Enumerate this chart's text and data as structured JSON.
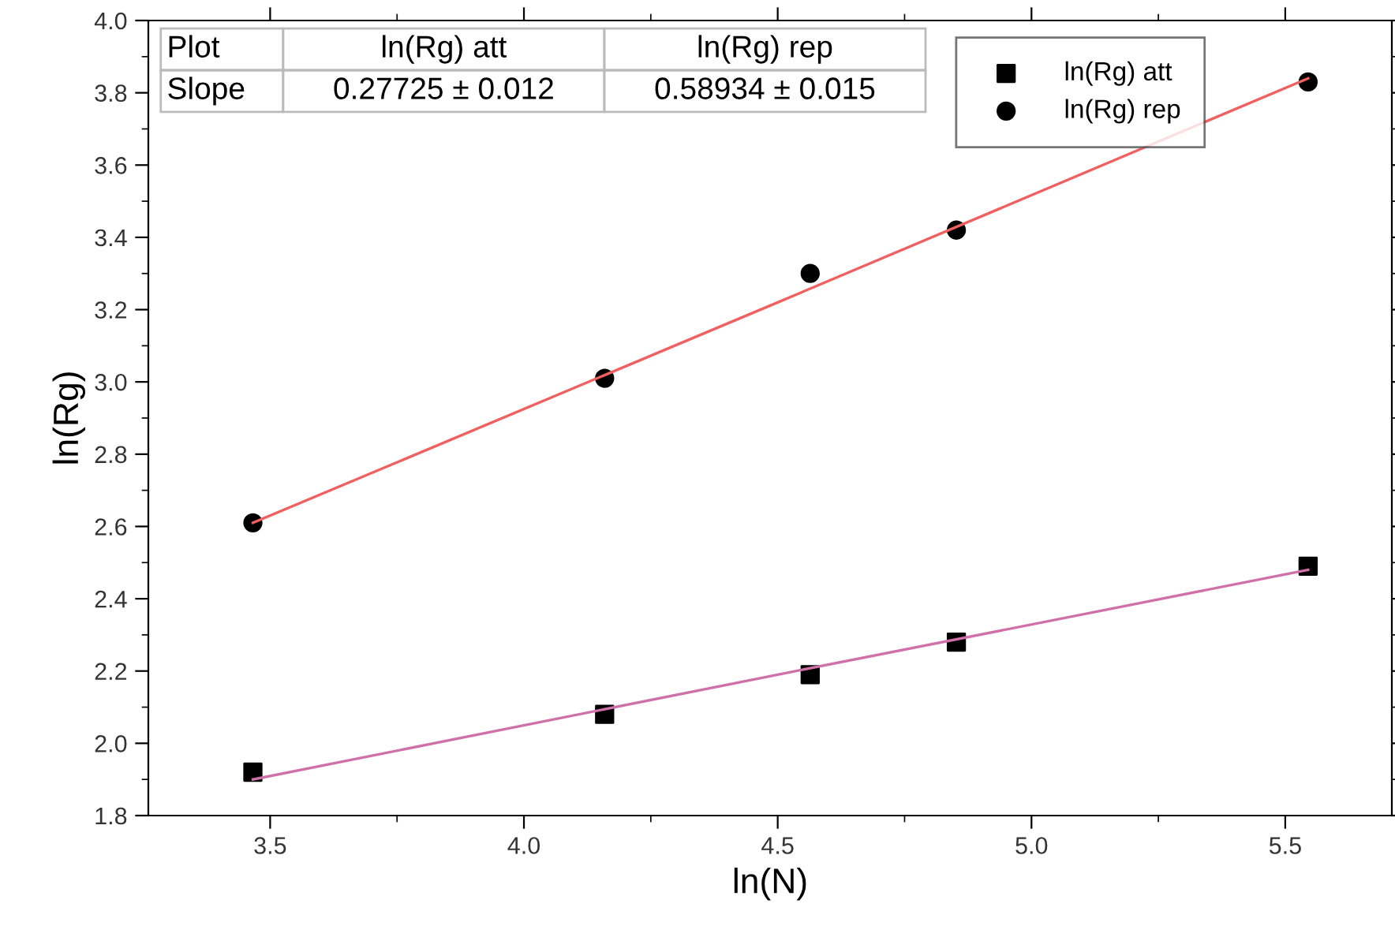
{
  "chart_data": {
    "type": "scatter",
    "xlabel": "ln(N)",
    "ylabel": "ln(Rg)",
    "x": [
      3.466,
      4.159,
      4.564,
      4.852,
      5.545
    ],
    "series": [
      {
        "name": "ln(Rg) att",
        "color": "#000000",
        "marker": "square",
        "values": [
          1.92,
          2.08,
          2.19,
          2.28,
          2.49
        ]
      },
      {
        "name": "ln(Rg) rep",
        "color": "#000000",
        "marker": "circle",
        "values": [
          2.61,
          3.01,
          3.3,
          3.42,
          3.83
        ]
      },
      {
        "type": "line",
        "color": "#d070a8",
        "marker": "none",
        "x": [
          3.466,
          4.5,
          5.545
        ],
        "values": [
          1.9,
          2.19,
          2.48
        ]
      },
      {
        "type": "line",
        "color": "#f06060",
        "marker": "none",
        "x": [
          3.466,
          4.5,
          5.545
        ],
        "values": [
          2.61,
          3.22,
          3.84
        ]
      }
    ],
    "xlim": [
      3.26,
      5.71
    ],
    "ylim": [
      1.8,
      4.0
    ],
    "xticks": [
      3.5,
      {
        "value": 3.75,
        "label": null
      },
      {
        "value": 4,
        "label": "4.0"
      },
      {
        "value": 4.25,
        "label": null
      },
      4.5,
      {
        "value": 4.75,
        "label": null
      },
      {
        "value": 5,
        "label": "5.0"
      },
      {
        "value": 5.25,
        "label": null
      },
      5.5
    ],
    "yticks": [
      1.8,
      {
        "value": 1.9,
        "label": null
      },
      {
        "value": 2,
        "label": "2.0"
      },
      {
        "value": 2.1,
        "label": null
      },
      2.2,
      {
        "value": 2.3,
        "label": null
      },
      2.4,
      {
        "value": 2.5,
        "label": null
      },
      2.6,
      {
        "value": 2.7,
        "label": null
      },
      2.8,
      {
        "value": 2.9,
        "label": null
      },
      {
        "value": 3,
        "label": "3.0"
      },
      {
        "value": 3.1,
        "label": null
      },
      3.2,
      {
        "value": 3.3,
        "label": null
      },
      3.4,
      {
        "value": 3.5,
        "label": null
      },
      3.6,
      {
        "value": 3.7,
        "label": null
      },
      3.8,
      {
        "value": 3.9,
        "label": null
      },
      {
        "value": 4,
        "label": "4.0"
      }
    ],
    "annotations": [
      "Plot",
      "ln(Rg) att",
      "ln(Rg) rep",
      "Slope",
      "0.27725 ± 0.012",
      "0.58934 ± 0.015"
    ],
    "grid": false,
    "legend": "top right"
  }
}
